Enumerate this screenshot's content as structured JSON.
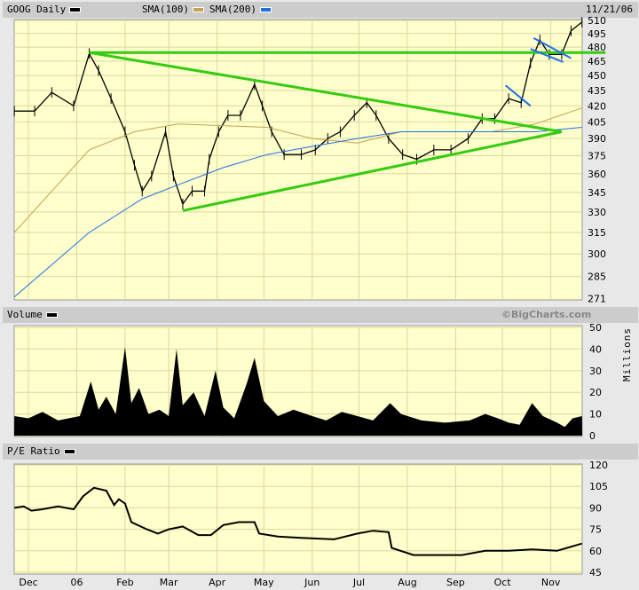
{
  "header": {
    "symbol_label": "GOOG Daily",
    "sma100_label": "SMA(100)",
    "sma200_label": "SMA(200)",
    "date": "11/21/06"
  },
  "volume_header": {
    "label": "Volume",
    "credit": "©BigCharts.com",
    "unit": "Millions"
  },
  "pe_header": {
    "label": "P/E Ratio"
  },
  "colors": {
    "plot_bg": "#ffffcc",
    "grid": "#d8d8a0",
    "price": "#000000",
    "sma100": "#c8a050",
    "sma200": "#1e6ee8",
    "trendline": "#33cc11",
    "channel": "#1e6ee8"
  },
  "chart_data": [
    {
      "type": "line",
      "title": "GOOG Daily",
      "scale": "log",
      "ylim": [
        271,
        510
      ],
      "yticks": [
        510,
        495,
        480,
        465,
        450,
        435,
        420,
        405,
        390,
        375,
        360,
        345,
        330,
        315,
        300,
        285,
        271
      ],
      "xticks": [
        {
          "label": "Dec",
          "date": "2005-12-01"
        },
        {
          "label": "06",
          "date": "2006-01-01"
        },
        {
          "label": "Feb",
          "date": "2006-02-01"
        },
        {
          "label": "Mar",
          "date": "2006-03-01"
        },
        {
          "label": "Apr",
          "date": "2006-04-01"
        },
        {
          "label": "May",
          "date": "2006-05-01"
        },
        {
          "label": "Jun",
          "date": "2006-06-01"
        },
        {
          "label": "Jul",
          "date": "2006-07-01"
        },
        {
          "label": "Aug",
          "date": "2006-08-01"
        },
        {
          "label": "Sep",
          "date": "2006-09-01"
        },
        {
          "label": "Oct",
          "date": "2006-10-01"
        },
        {
          "label": "Nov",
          "date": "2006-11-01"
        }
      ],
      "series": [
        {
          "name": "GOOG Daily",
          "points": [
            [
              "2005-11-22",
              415
            ],
            [
              "2005-12-05",
              415
            ],
            [
              "2005-12-16",
              433
            ],
            [
              "2005-12-30",
              420
            ],
            [
              "2006-01-09",
              473
            ],
            [
              "2006-01-15",
              455
            ],
            [
              "2006-01-23",
              427
            ],
            [
              "2006-02-01",
              396
            ],
            [
              "2006-02-07",
              367
            ],
            [
              "2006-02-12",
              346
            ],
            [
              "2006-02-18",
              358
            ],
            [
              "2006-02-27",
              396
            ],
            [
              "2006-03-04",
              358
            ],
            [
              "2006-03-10",
              336
            ],
            [
              "2006-03-16",
              346
            ],
            [
              "2006-03-24",
              346
            ],
            [
              "2006-03-27",
              372
            ],
            [
              "2006-04-02",
              396
            ],
            [
              "2006-04-08",
              411
            ],
            [
              "2006-04-16",
              411
            ],
            [
              "2006-04-25",
              441
            ],
            [
              "2006-04-30",
              420
            ],
            [
              "2006-05-06",
              396
            ],
            [
              "2006-05-14",
              376
            ],
            [
              "2006-05-25",
              376
            ],
            [
              "2006-06-03",
              380
            ],
            [
              "2006-06-11",
              390
            ],
            [
              "2006-06-19",
              396
            ],
            [
              "2006-06-28",
              411
            ],
            [
              "2006-07-06",
              423
            ],
            [
              "2006-07-12",
              411
            ],
            [
              "2006-07-20",
              390
            ],
            [
              "2006-07-29",
              376
            ],
            [
              "2006-08-07",
              372
            ],
            [
              "2006-08-18",
              380
            ],
            [
              "2006-08-29",
              380
            ],
            [
              "2006-09-09",
              390
            ],
            [
              "2006-09-18",
              408
            ],
            [
              "2006-09-26",
              408
            ],
            [
              "2006-10-05",
              427
            ],
            [
              "2006-10-13",
              423
            ],
            [
              "2006-10-19",
              463
            ],
            [
              "2006-10-25",
              488
            ],
            [
              "2006-10-31",
              472
            ],
            [
              "2006-11-08",
              472
            ],
            [
              "2006-11-14",
              498
            ],
            [
              "2006-11-21",
              508
            ]
          ]
        },
        {
          "name": "SMA(100)",
          "points": [
            [
              "2005-11-22",
              315
            ],
            [
              "2006-01-09",
              380
            ],
            [
              "2006-02-07",
              396
            ],
            [
              "2006-03-07",
              403
            ],
            [
              "2006-05-03",
              400
            ],
            [
              "2006-06-01",
              390
            ],
            [
              "2006-06-30",
              386
            ],
            [
              "2006-07-28",
              396
            ],
            [
              "2006-08-26",
              396
            ],
            [
              "2006-09-24",
              396
            ],
            [
              "2006-10-22",
              403
            ],
            [
              "2006-11-21",
              418
            ]
          ]
        },
        {
          "name": "SMA(200)",
          "points": [
            [
              "2005-11-22",
              272
            ],
            [
              "2006-01-09",
              315
            ],
            [
              "2006-02-12",
              340
            ],
            [
              "2006-03-07",
              351
            ],
            [
              "2006-04-05",
              365
            ],
            [
              "2006-05-03",
              376
            ],
            [
              "2006-06-01",
              383
            ],
            [
              "2006-06-30",
              390
            ],
            [
              "2006-07-28",
              396
            ],
            [
              "2006-08-26",
              396
            ],
            [
              "2006-09-24",
              396
            ],
            [
              "2006-10-22",
              396
            ],
            [
              "2006-11-21",
              400
            ]
          ]
        }
      ],
      "annotations": [
        {
          "kind": "trendline",
          "color": "trendline",
          "from": [
            "2006-01-09",
            474
          ],
          "to": [
            "2006-12-06",
            474
          ]
        },
        {
          "kind": "trendline",
          "color": "trendline",
          "from": [
            "2006-01-09",
            474
          ],
          "to": [
            "2006-11-08",
            396
          ]
        },
        {
          "kind": "trendline",
          "color": "trendline",
          "from": [
            "2006-03-10",
            331
          ],
          "to": [
            "2006-11-08",
            396
          ]
        },
        {
          "kind": "channel",
          "color": "channel",
          "from": [
            "2006-10-03",
            440
          ],
          "to": [
            "2006-10-19",
            420
          ]
        },
        {
          "kind": "channel",
          "color": "channel",
          "from": [
            "2006-10-21",
            490
          ],
          "to": [
            "2006-11-14",
            468
          ]
        },
        {
          "kind": "channel",
          "color": "channel",
          "from": [
            "2006-10-19",
            478
          ],
          "to": [
            "2006-11-09",
            464
          ]
        }
      ]
    },
    {
      "type": "area",
      "title": "Volume",
      "ylabel": "Millions",
      "ylim": [
        0,
        50
      ],
      "yticks": [
        50,
        40,
        30,
        20,
        10,
        0
      ],
      "points": [
        [
          "2005-11-22",
          9
        ],
        [
          "2005-12-01",
          8
        ],
        [
          "2005-12-10",
          11
        ],
        [
          "2005-12-20",
          7
        ],
        [
          "2006-01-03",
          9
        ],
        [
          "2006-01-10",
          25
        ],
        [
          "2006-01-15",
          12
        ],
        [
          "2006-01-20",
          18
        ],
        [
          "2006-01-26",
          10
        ],
        [
          "2006-02-01",
          41
        ],
        [
          "2006-02-05",
          15
        ],
        [
          "2006-02-10",
          22
        ],
        [
          "2006-02-16",
          10
        ],
        [
          "2006-02-23",
          12
        ],
        [
          "2006-03-01",
          9
        ],
        [
          "2006-03-06",
          40
        ],
        [
          "2006-03-10",
          14
        ],
        [
          "2006-03-17",
          20
        ],
        [
          "2006-03-24",
          9
        ],
        [
          "2006-03-31",
          30
        ],
        [
          "2006-04-05",
          13
        ],
        [
          "2006-04-12",
          8
        ],
        [
          "2006-04-20",
          24
        ],
        [
          "2006-04-25",
          36
        ],
        [
          "2006-05-01",
          16
        ],
        [
          "2006-05-10",
          9
        ],
        [
          "2006-05-20",
          12
        ],
        [
          "2006-06-01",
          9
        ],
        [
          "2006-06-10",
          7
        ],
        [
          "2006-06-20",
          11
        ],
        [
          "2006-06-30",
          9
        ],
        [
          "2006-07-10",
          7
        ],
        [
          "2006-07-21",
          15
        ],
        [
          "2006-07-28",
          10
        ],
        [
          "2006-08-10",
          7
        ],
        [
          "2006-08-25",
          6
        ],
        [
          "2006-09-10",
          7
        ],
        [
          "2006-09-20",
          10
        ],
        [
          "2006-09-28",
          8
        ],
        [
          "2006-10-05",
          6
        ],
        [
          "2006-10-12",
          5
        ],
        [
          "2006-10-20",
          15
        ],
        [
          "2006-10-27",
          9
        ],
        [
          "2006-11-05",
          6
        ],
        [
          "2006-11-10",
          4
        ],
        [
          "2006-11-15",
          8
        ],
        [
          "2006-11-21",
          9
        ]
      ]
    },
    {
      "type": "line",
      "title": "P/E Ratio",
      "ylim": [
        45,
        120
      ],
      "yticks": [
        120,
        105,
        90,
        75,
        60,
        45
      ],
      "points": [
        [
          "2005-11-22",
          90
        ],
        [
          "2005-11-28",
          91
        ],
        [
          "2005-12-03",
          88
        ],
        [
          "2005-12-10",
          89
        ],
        [
          "2005-12-20",
          91
        ],
        [
          "2005-12-30",
          89
        ],
        [
          "2006-01-05",
          98
        ],
        [
          "2006-01-12",
          104
        ],
        [
          "2006-01-20",
          102
        ],
        [
          "2006-01-25",
          92
        ],
        [
          "2006-01-28",
          96
        ],
        [
          "2006-02-01",
          93
        ],
        [
          "2006-02-05",
          80
        ],
        [
          "2006-02-15",
          75
        ],
        [
          "2006-02-22",
          72
        ],
        [
          "2006-03-01",
          75
        ],
        [
          "2006-03-10",
          77
        ],
        [
          "2006-03-20",
          71
        ],
        [
          "2006-03-28",
          71
        ],
        [
          "2006-04-05",
          78
        ],
        [
          "2006-04-15",
          80
        ],
        [
          "2006-04-25",
          80
        ],
        [
          "2006-04-28",
          72
        ],
        [
          "2006-05-10",
          70
        ],
        [
          "2006-05-25",
          69
        ],
        [
          "2006-06-15",
          68
        ],
        [
          "2006-06-30",
          72
        ],
        [
          "2006-07-10",
          74
        ],
        [
          "2006-07-20",
          73
        ],
        [
          "2006-07-22",
          62
        ],
        [
          "2006-08-05",
          57
        ],
        [
          "2006-08-20",
          57
        ],
        [
          "2006-09-05",
          57
        ],
        [
          "2006-09-20",
          60
        ],
        [
          "2006-10-05",
          60
        ],
        [
          "2006-10-20",
          61
        ],
        [
          "2006-11-05",
          60
        ],
        [
          "2006-11-21",
          65
        ]
      ]
    }
  ]
}
